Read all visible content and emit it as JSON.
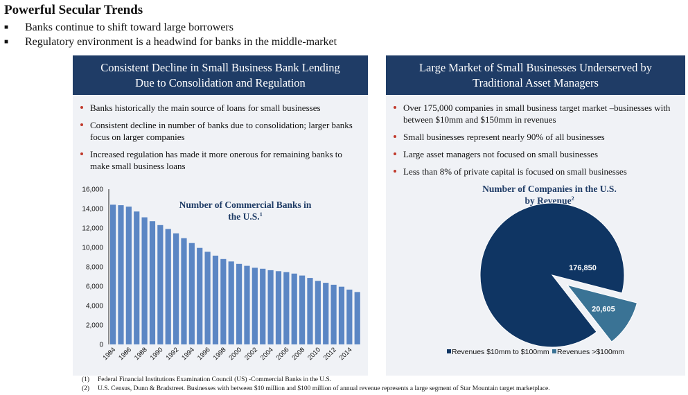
{
  "title": "Powerful Secular Trends",
  "top_bullets": [
    "Banks continue to shift toward large borrowers",
    "Regulatory environment is a headwind for banks in the middle-market"
  ],
  "left_panel": {
    "heading_line1": "Consistent Decline in Small Business Bank Lending",
    "heading_line2": "Due to Consolidation and Regulation",
    "bullets": [
      "Banks historically the main source of loans for small businesses",
      "Consistent decline in number of banks due to consolidation; larger banks focus on larger companies",
      "Increased regulation has made it more onerous for remaining banks to make small business loans"
    ]
  },
  "right_panel": {
    "heading_line1": "Large Market of Small Businesses Underserved by",
    "heading_line2": "Traditional Asset Managers",
    "bullets": [
      "Over 175,000 companies in small business target market –businesses with between $10mm and $150mm in revenues",
      "Small businesses represent nearly 90% of all businesses",
      "Large asset managers not focused on small businesses",
      "Less than 8% of private capital is focused on small businesses"
    ]
  },
  "footnotes": [
    {
      "num": "(1)",
      "text": "Federal Financial Institutions Examination Council (US) -Commercial Banks in the U.S."
    },
    {
      "num": "(2)",
      "text": "U.S. Census, Dunn & Bradstreet. Businesses with between $10 million and $100 million of annual revenue represents a large segment of Star Mountain target marketplace."
    }
  ],
  "colors": {
    "bar": "#5b86c4",
    "navy": "#0f3563",
    "steel": "#3a7395",
    "panel_bg": "#f0f2f6",
    "bullet": "#c0392b"
  },
  "chart_data": [
    {
      "type": "bar",
      "title_line1": "Number of Commercial Banks in",
      "title_line2": "the U.S.",
      "footnote_ref": "1",
      "x_tick_labels": [
        "1984",
        "1986",
        "1988",
        "1990",
        "1992",
        "1994",
        "1996",
        "1998",
        "2000",
        "2002",
        "2004",
        "2006",
        "2008",
        "2010",
        "2012",
        "2014"
      ],
      "categories": [
        "1984",
        "1985",
        "1986",
        "1987",
        "1988",
        "1989",
        "1990",
        "1991",
        "1992",
        "1993",
        "1994",
        "1995",
        "1996",
        "1997",
        "1998",
        "1999",
        "2000",
        "2001",
        "2002",
        "2003",
        "2004",
        "2005",
        "2006",
        "2007",
        "2008",
        "2009",
        "2010",
        "2011",
        "2012",
        "2013",
        "2014",
        "2015"
      ],
      "values": [
        14400,
        14350,
        14200,
        13700,
        13100,
        12700,
        12300,
        11900,
        11450,
        10950,
        10450,
        9950,
        9550,
        9150,
        8800,
        8550,
        8300,
        8100,
        7900,
        7800,
        7650,
        7550,
        7450,
        7300,
        7100,
        6850,
        6550,
        6350,
        6150,
        5950,
        5650,
        5400
      ],
      "y_ticks": [
        "0",
        "2,000",
        "4,000",
        "6,000",
        "8,000",
        "10,000",
        "12,000",
        "14,000",
        "16,000"
      ],
      "ylim": [
        0,
        16000
      ]
    },
    {
      "type": "pie",
      "title_line1": "Number of Companies in the U.S.",
      "title_line2": "by Revenue",
      "footnote_ref": "2",
      "labels": [
        "Revenues $10mm to $100mm",
        "Revenues >$100mm"
      ],
      "values": [
        176850,
        20605
      ],
      "value_labels": [
        "176,850",
        "20,605"
      ],
      "colors": [
        "#0f3563",
        "#3a7395"
      ],
      "exploded_slice": 1,
      "legend_position": "bottom"
    }
  ]
}
